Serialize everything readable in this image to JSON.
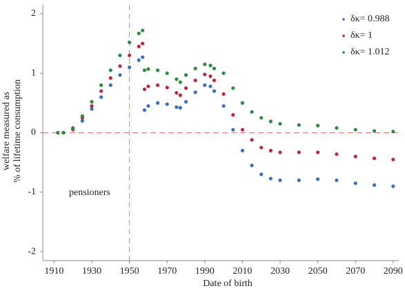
{
  "chart_data": {
    "type": "scatter",
    "xlabel": "Date of birth",
    "ylabel": [
      "welfare measured as",
      "% of lifetime consumption"
    ],
    "annotation": "pensioners",
    "x": [
      1912,
      1915,
      1920,
      1925,
      1930,
      1935,
      1940,
      1945,
      1950,
      1955,
      1957,
      1958,
      1960,
      1965,
      1970,
      1975,
      1977,
      1980,
      1985,
      1990,
      1993,
      1995,
      2000,
      2005,
      2010,
      2015,
      2020,
      2025,
      2030,
      2040,
      2050,
      2060,
      2070,
      2080,
      2090
    ],
    "series": [
      {
        "name": "δκ= 0.988",
        "color": "#3a6fc0",
        "values": [
          0,
          0,
          0.05,
          0.2,
          0.4,
          0.6,
          0.8,
          0.97,
          1.1,
          1.22,
          1.27,
          0.38,
          0.45,
          0.5,
          0.48,
          0.43,
          0.42,
          0.52,
          0.68,
          0.8,
          0.78,
          0.7,
          0.45,
          0.05,
          -0.3,
          -0.55,
          -0.7,
          -0.77,
          -0.8,
          -0.8,
          -0.78,
          -0.8,
          -0.85,
          -0.88,
          -0.9
        ]
      },
      {
        "name": "δκ= 1",
        "color": "#c0283a",
        "values": [
          0,
          0,
          0.07,
          0.25,
          0.45,
          0.7,
          0.92,
          1.12,
          1.3,
          1.45,
          1.5,
          0.73,
          0.78,
          0.8,
          0.76,
          0.67,
          0.63,
          0.75,
          0.88,
          0.98,
          0.95,
          0.88,
          0.65,
          0.3,
          0.05,
          -0.12,
          -0.25,
          -0.3,
          -0.33,
          -0.33,
          -0.33,
          -0.36,
          -0.4,
          -0.43,
          -0.45
        ]
      },
      {
        "name": "δκ= 1.012",
        "color": "#2e8b3e",
        "values": [
          0,
          0,
          0.08,
          0.28,
          0.52,
          0.8,
          1.05,
          1.3,
          1.52,
          1.67,
          1.72,
          1.05,
          1.07,
          1.05,
          1.0,
          0.9,
          0.85,
          0.97,
          1.08,
          1.15,
          1.13,
          1.08,
          1.0,
          0.75,
          0.5,
          0.35,
          0.25,
          0.19,
          0.15,
          0.13,
          0.12,
          0.08,
          0.05,
          0.03,
          0.02
        ]
      }
    ],
    "xlim": [
      1904,
      2093
    ],
    "ylim": [
      -2.15,
      2.15
    ],
    "xticks": [
      1910,
      1930,
      1950,
      1970,
      1990,
      2010,
      2030,
      2050,
      2070,
      2090
    ],
    "yticks": [
      -2,
      -1,
      0,
      1,
      2
    ],
    "hlines": [
      0
    ],
    "vlines": [
      1950
    ],
    "refline_color": "#e07a7a",
    "legend": "top-right"
  }
}
